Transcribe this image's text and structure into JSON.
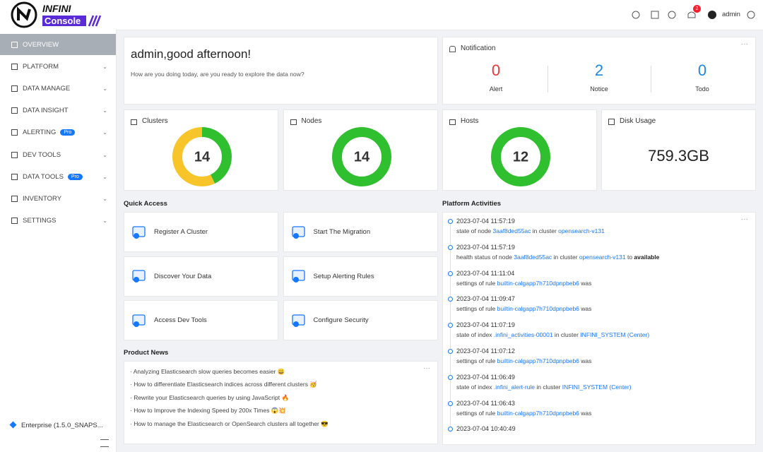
{
  "header": {
    "logo_top": "INFINI",
    "logo_bottom": "Console",
    "badge": 2,
    "user": "admin"
  },
  "sidebar": {
    "menu": [
      {
        "label": "OVERVIEW",
        "active": true
      },
      {
        "label": "PLATFORM"
      },
      {
        "label": "DATA MANAGE"
      },
      {
        "label": "DATA INSIGHT"
      },
      {
        "label": "ALERTING",
        "tag": "Pro"
      },
      {
        "label": "DEV TOOLS"
      },
      {
        "label": "DATA TOOLS",
        "tag": "Pro"
      },
      {
        "label": "INVENTORY"
      },
      {
        "label": "SETTINGS"
      }
    ],
    "footer": "Enterprise (1.5.0_SNAPS..."
  },
  "greeting": {
    "title": "admin,good afternoon!",
    "subtitle": "How are you doing today, are you ready to explore the data now?"
  },
  "notification": {
    "title": "Notification",
    "items": [
      {
        "value": 0,
        "label": "Alert",
        "color": "#e53935"
      },
      {
        "value": 2,
        "label": "Notice",
        "color": "#1e88e5"
      },
      {
        "value": 0,
        "label": "Todo",
        "color": "#1e88e5"
      }
    ]
  },
  "stats": [
    {
      "title": "Clusters",
      "value": 14,
      "segments": [
        {
          "value": 6,
          "color": "#2fbf2f"
        },
        {
          "value": 8,
          "color": "#f7c52a"
        }
      ]
    },
    {
      "title": "Nodes",
      "value": 14,
      "segments": [
        {
          "value": 14,
          "color": "#2fbf2f"
        }
      ]
    },
    {
      "title": "Hosts",
      "value": 12,
      "segments": [
        {
          "value": 12,
          "color": "#2fbf2f"
        }
      ]
    }
  ],
  "disk": {
    "title": "Disk Usage",
    "value": "759.3GB"
  },
  "quick_access": {
    "title": "Quick Access",
    "items": [
      "Register A Cluster",
      "Start The Migration",
      "Discover Your Data",
      "Setup Alerting Rules",
      "Access Dev Tools",
      "Configure Security"
    ]
  },
  "news": {
    "title": "Product News",
    "items": [
      "· Analyzing Elasticsearch slow queries becomes easier 😀",
      "· How to differentiate Elasticsearch indices across different clusters 🥳",
      "· Rewrite your Elasticsearch queries by using JavaScript 🔥",
      "· How to Improve the Indexing Speed by 200x Times 😱💥",
      "· How to manage the Elasticsearch or OpenSearch clusters all together 😎"
    ]
  },
  "activities": {
    "title": "Platform Activities",
    "items": [
      {
        "time": "2023-07-04 11:57:19",
        "parts": [
          {
            "text": "state of node "
          },
          {
            "text": "3aaf8ded55ac",
            "link": true
          },
          {
            "text": " in cluster "
          },
          {
            "text": "opensearch-v131",
            "link": true
          }
        ]
      },
      {
        "time": "2023-07-04 11:57:19",
        "parts": [
          {
            "text": "health status of node "
          },
          {
            "text": "3aaf8ded55ac",
            "link": true
          },
          {
            "text": " in cluster "
          },
          {
            "text": "opensearch-v131",
            "link": true
          },
          {
            "text": " to "
          },
          {
            "text": "available",
            "bold": true
          }
        ]
      },
      {
        "time": "2023-07-04 11:11:04",
        "parts": [
          {
            "text": "settings of rule "
          },
          {
            "text": "builtin-calgapp7h710dpnpbeb6",
            "link": true
          },
          {
            "text": " was"
          }
        ]
      },
      {
        "time": "2023-07-04 11:09:47",
        "parts": [
          {
            "text": "settings of rule "
          },
          {
            "text": "builtin-calgapp7h710dpnpbeb6",
            "link": true
          },
          {
            "text": " was"
          }
        ]
      },
      {
        "time": "2023-07-04 11:07:19",
        "parts": [
          {
            "text": "state of index "
          },
          {
            "text": ".infini_activities-00001",
            "link": true
          },
          {
            "text": " in cluster "
          },
          {
            "text": "INFINI_SYSTEM (Center)",
            "link": true
          }
        ]
      },
      {
        "time": "2023-07-04 11:07:12",
        "parts": [
          {
            "text": "settings of rule "
          },
          {
            "text": "builtin-calgapp7h710dpnpbeb6",
            "link": true
          },
          {
            "text": " was"
          }
        ]
      },
      {
        "time": "2023-07-04 11:06:49",
        "parts": [
          {
            "text": "state of index "
          },
          {
            "text": ".infini_alert-rule",
            "link": true
          },
          {
            "text": " in cluster "
          },
          {
            "text": "INFINI_SYSTEM (Center)",
            "link": true
          }
        ]
      },
      {
        "time": "2023-07-04 11:06:43",
        "parts": [
          {
            "text": "settings of rule "
          },
          {
            "text": "builtin-calgapp7h710dpnpbeb6",
            "link": true
          },
          {
            "text": " was"
          }
        ]
      },
      {
        "time": "2023-07-04 10:40:49",
        "parts": []
      }
    ]
  }
}
